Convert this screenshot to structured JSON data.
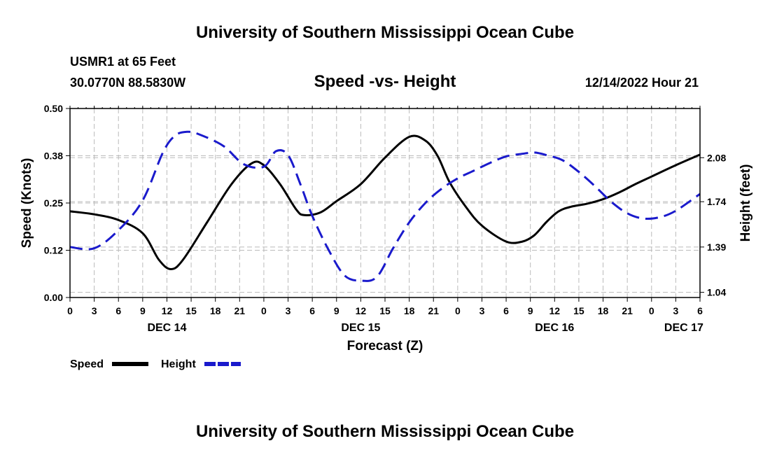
{
  "header": {
    "title": "University of Southern Mississippi Ocean Cube",
    "station": "USMR1 at 65 Feet",
    "coords": "30.0770N  88.5830W",
    "subtitle": "Speed -vs- Height",
    "datetime": "12/14/2022 Hour 21"
  },
  "footer": {
    "title": "University of Southern Mississippi Ocean Cube"
  },
  "legend": {
    "speed_label": "Speed",
    "height_label": "Height"
  },
  "colors": {
    "speed": "#000000",
    "height": "#1a1acc",
    "grid": "#bbbbbb"
  },
  "chart_data": {
    "type": "line",
    "title": "Speed -vs- Height",
    "xlabel": "Forecast (Z)",
    "ylabel": "Speed (Knots)",
    "y2label": "Height (feet)",
    "xlim": [
      0,
      78
    ],
    "ylim": [
      0,
      0.5
    ],
    "y2lim": [
      1.0,
      2.46
    ],
    "x_ticks": [
      0,
      3,
      6,
      9,
      12,
      15,
      18,
      21,
      24,
      27,
      30,
      33,
      36,
      39,
      42,
      45,
      48,
      51,
      54,
      57,
      60,
      63,
      66,
      69,
      72,
      75,
      78
    ],
    "x_tick_labels": [
      "0",
      "3",
      "6",
      "9",
      "12",
      "15",
      "18",
      "21",
      "0",
      "3",
      "6",
      "9",
      "12",
      "15",
      "18",
      "21",
      "0",
      "3",
      "6",
      "9",
      "12",
      "15",
      "18",
      "21",
      "0",
      "3",
      "6"
    ],
    "day_labels": [
      {
        "label": "DEC 14",
        "x": 12
      },
      {
        "label": "DEC 15",
        "x": 36
      },
      {
        "label": "DEC 16",
        "x": 60
      },
      {
        "label": "DEC 17",
        "x": 76
      }
    ],
    "y_ticks": [
      0.0,
      0.125,
      0.25,
      0.375,
      0.5
    ],
    "y_tick_labels": [
      "0.00",
      "0.12",
      "0.25",
      "0.38",
      "0.50"
    ],
    "y2_ticks": [
      1.04,
      1.39,
      1.74,
      2.08
    ],
    "y2_tick_labels": [
      "1.04",
      "1.39",
      "1.74",
      "2.08"
    ],
    "series": [
      {
        "name": "Speed",
        "axis": "left",
        "style": "solid",
        "x": [
          0,
          3,
          6,
          9,
          11,
          12.5,
          14,
          17,
          20,
          22.5,
          24,
          26,
          28,
          29,
          31,
          33,
          36,
          39,
          42,
          44,
          45.5,
          47,
          49,
          51,
          54,
          56,
          57.5,
          59,
          60.5,
          62,
          64,
          66,
          68,
          70,
          72,
          75,
          78
        ],
        "values": [
          0.228,
          0.22,
          0.205,
          0.17,
          0.1,
          0.075,
          0.1,
          0.2,
          0.3,
          0.355,
          0.35,
          0.3,
          0.233,
          0.218,
          0.225,
          0.255,
          0.3,
          0.37,
          0.425,
          0.415,
          0.375,
          0.305,
          0.24,
          0.19,
          0.148,
          0.148,
          0.165,
          0.2,
          0.228,
          0.24,
          0.248,
          0.26,
          0.278,
          0.3,
          0.32,
          0.35,
          0.378
        ]
      },
      {
        "name": "Height",
        "axis": "right",
        "style": "dashed",
        "x": [
          0,
          3,
          6,
          9,
          11.5,
          13,
          14.5,
          16,
          19,
          21.5,
          24,
          25.5,
          27,
          28.5,
          30,
          32,
          34,
          36,
          38,
          40,
          42,
          44,
          46,
          48,
          50,
          52,
          54,
          56,
          57.5,
          59,
          61,
          63,
          65,
          67,
          69,
          71,
          73,
          75,
          78
        ],
        "values": [
          1.39,
          1.38,
          1.52,
          1.75,
          2.12,
          2.25,
          2.28,
          2.26,
          2.17,
          2.03,
          2.01,
          2.13,
          2.1,
          1.88,
          1.63,
          1.37,
          1.17,
          1.13,
          1.16,
          1.38,
          1.58,
          1.73,
          1.84,
          1.92,
          1.98,
          2.04,
          2.09,
          2.11,
          2.12,
          2.1,
          2.06,
          1.97,
          1.86,
          1.74,
          1.65,
          1.61,
          1.62,
          1.67,
          1.8
        ]
      }
    ]
  }
}
